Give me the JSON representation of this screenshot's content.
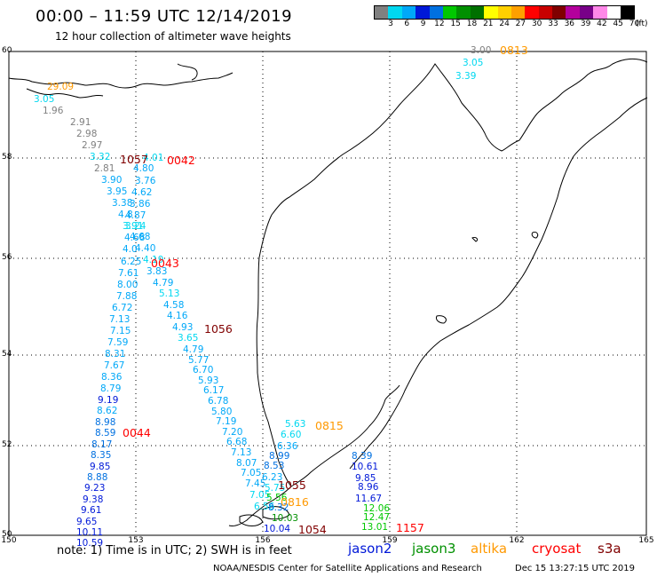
{
  "header": {
    "title": "00:00 – 11:59 UTC 12/14/2019",
    "subtitle": "12 hour collection of altimeter wave heights"
  },
  "colorbar": {
    "colors": [
      "#808080",
      "#00d8f0",
      "#00a8f8",
      "#0018d8",
      "#0070e0",
      "#00c800",
      "#009000",
      "#007000",
      "#ffff00",
      "#ffd000",
      "#ffa000",
      "#ff0000",
      "#c80000",
      "#800000",
      "#b4009c",
      "#780088",
      "#ff88e8",
      "#ffffff",
      "#000000"
    ],
    "labels": [
      "3",
      "6",
      "9",
      "12",
      "15",
      "18",
      "21",
      "24",
      "27",
      "30",
      "33",
      "36",
      "39",
      "42",
      "45",
      "70"
    ],
    "unit": "(ft)"
  },
  "axes": {
    "lon_ticks": [
      "150",
      "153",
      "156",
      "159",
      "162",
      "165"
    ],
    "lat_ticks": [
      "60",
      "58",
      "56",
      "54",
      "52",
      "50"
    ]
  },
  "passes": [
    {
      "label": "0813",
      "color": "#ff9900"
    },
    {
      "label": "1057",
      "color": "#800000"
    },
    {
      "label": "0042",
      "color": "#ff0000"
    },
    {
      "label": "0043",
      "color": "#ff0000"
    },
    {
      "label": "1056",
      "color": "#800000"
    },
    {
      "label": "0815",
      "color": "#ff9900"
    },
    {
      "label": "0044",
      "color": "#ff0000"
    },
    {
      "label": "1055",
      "color": "#800000"
    },
    {
      "label": "0816",
      "color": "#ff9900"
    },
    {
      "label": "1054",
      "color": "#800000"
    },
    {
      "label": "1157",
      "color": "#ff0000"
    }
  ],
  "tracks": [
    {
      "values": [
        "29.09",
        "3.05",
        "1.96",
        "2.91",
        "2.98",
        "2.97",
        "3.32",
        "2.81",
        "3.90",
        "3.95",
        "3.38",
        "4.8",
        "3.91",
        "4.68",
        "4.0",
        "6.25",
        "7.61",
        "8.00",
        "7.88",
        "6.72",
        "7.13",
        "7.15",
        "7.59",
        "8.31",
        "7.67",
        "8.36",
        "8.79",
        "9.19",
        "8.62",
        "8.98",
        "8.59",
        "8.17",
        "8.35",
        "9.85",
        "8.88",
        "9.23",
        "9.38",
        "9.61",
        "9.65",
        "10.11",
        "10.59"
      ],
      "colors": [
        "#ff9900",
        "#00d8f0",
        "#808080",
        "#808080",
        "#808080",
        "#808080",
        "#00d8f0",
        "#808080",
        "#00a8f8",
        "#00a8f8",
        "#00a8f8",
        "#00a8f8",
        "#00d8f0",
        "#00a8f8",
        "#00a8f8",
        "#00a8f8",
        "#00a8f8",
        "#00a8f8",
        "#00a8f8",
        "#00a8f8",
        "#00a8f8",
        "#00a8f8",
        "#00a8f8",
        "#00a8f8",
        "#00a8f8",
        "#00a8f8",
        "#00a8f8",
        "#0018d8",
        "#00a8f8",
        "#0070e0",
        "#0070e0",
        "#0070e0",
        "#0070e0",
        "#0018d8",
        "#0070e0",
        "#0018d8",
        "#0018d8",
        "#0018d8",
        "#0018d8",
        "#0018d8",
        "#0018d8"
      ]
    },
    {
      "values": [
        "4.01",
        "4.80",
        "3.76",
        "4.62",
        "3.86",
        "4.87",
        "3.24",
        "4.68",
        "4.40",
        "4.19",
        "3.83",
        "4.79",
        "5.13",
        "4.58",
        "4.16",
        "4.93",
        "3.65",
        "4.79",
        "5.77",
        "6.70",
        "5.93",
        "6.17",
        "6.78",
        "5.80",
        "7.19",
        "7.20",
        "6.68",
        "7.13",
        "8.07",
        "7.05",
        "7.45",
        "7.05",
        "6.56"
      ],
      "colors": [
        "#00d8f0",
        "#00a8f8",
        "#00a8f8",
        "#00a8f8",
        "#00a8f8",
        "#00a8f8",
        "#00d8f0",
        "#00a8f8",
        "#00a8f8",
        "#00d8f0",
        "#00a8f8",
        "#00a8f8",
        "#00d8f0",
        "#00a8f8",
        "#00a8f8",
        "#00a8f8",
        "#00d8f0",
        "#00a8f8",
        "#00a8f8",
        "#00a8f8",
        "#00a8f8",
        "#00a8f8",
        "#00a8f8",
        "#00a8f8",
        "#00a8f8",
        "#00a8f8",
        "#00a8f8",
        "#00a8f8",
        "#00a8f8",
        "#00a8f8",
        "#00a8f8",
        "#00d8f0",
        "#00d8f0"
      ]
    },
    {
      "values": [
        "3.00",
        "3.05",
        "3.39"
      ],
      "colors": [
        "#808080",
        "#00d8f0",
        "#00d8f0"
      ]
    },
    {
      "values": [
        "5.63",
        "6.60",
        "6.36",
        "8.99",
        "8.53",
        "6.23",
        "5.75",
        "5.56",
        "8.32",
        "10.03",
        "10.04"
      ],
      "colors": [
        "#00d8f0",
        "#00d8f0",
        "#00a8f8",
        "#0070e0",
        "#0070e0",
        "#00a8f8",
        "#00d8f0",
        "#00c800",
        "#0070e0",
        "#009000",
        "#0018d8"
      ]
    },
    {
      "values": [
        "8.39",
        "10.61",
        "9.85",
        "8.96",
        "11.67",
        "12.06",
        "12.47",
        "13.01"
      ],
      "colors": [
        "#0070e0",
        "#0018d8",
        "#0018d8",
        "#0018d8",
        "#0018d8",
        "#00c800",
        "#00c800",
        "#00c800"
      ]
    }
  ],
  "footer": {
    "note": "note:  1) Time is in UTC;  2) SWH is in feet",
    "satellites": [
      {
        "name": "jason2",
        "color": "#0018d8"
      },
      {
        "name": "jason3",
        "color": "#009000"
      },
      {
        "name": "altika",
        "color": "#ff9900"
      },
      {
        "name": "cryosat",
        "color": "#ff0000"
      },
      {
        "name": "s3a",
        "color": "#800000"
      }
    ],
    "credit": "NOAA/NESDIS Center for Satellite Applications and Research",
    "timestamp": "Dec 15 13:27:15 UTC 2019"
  }
}
